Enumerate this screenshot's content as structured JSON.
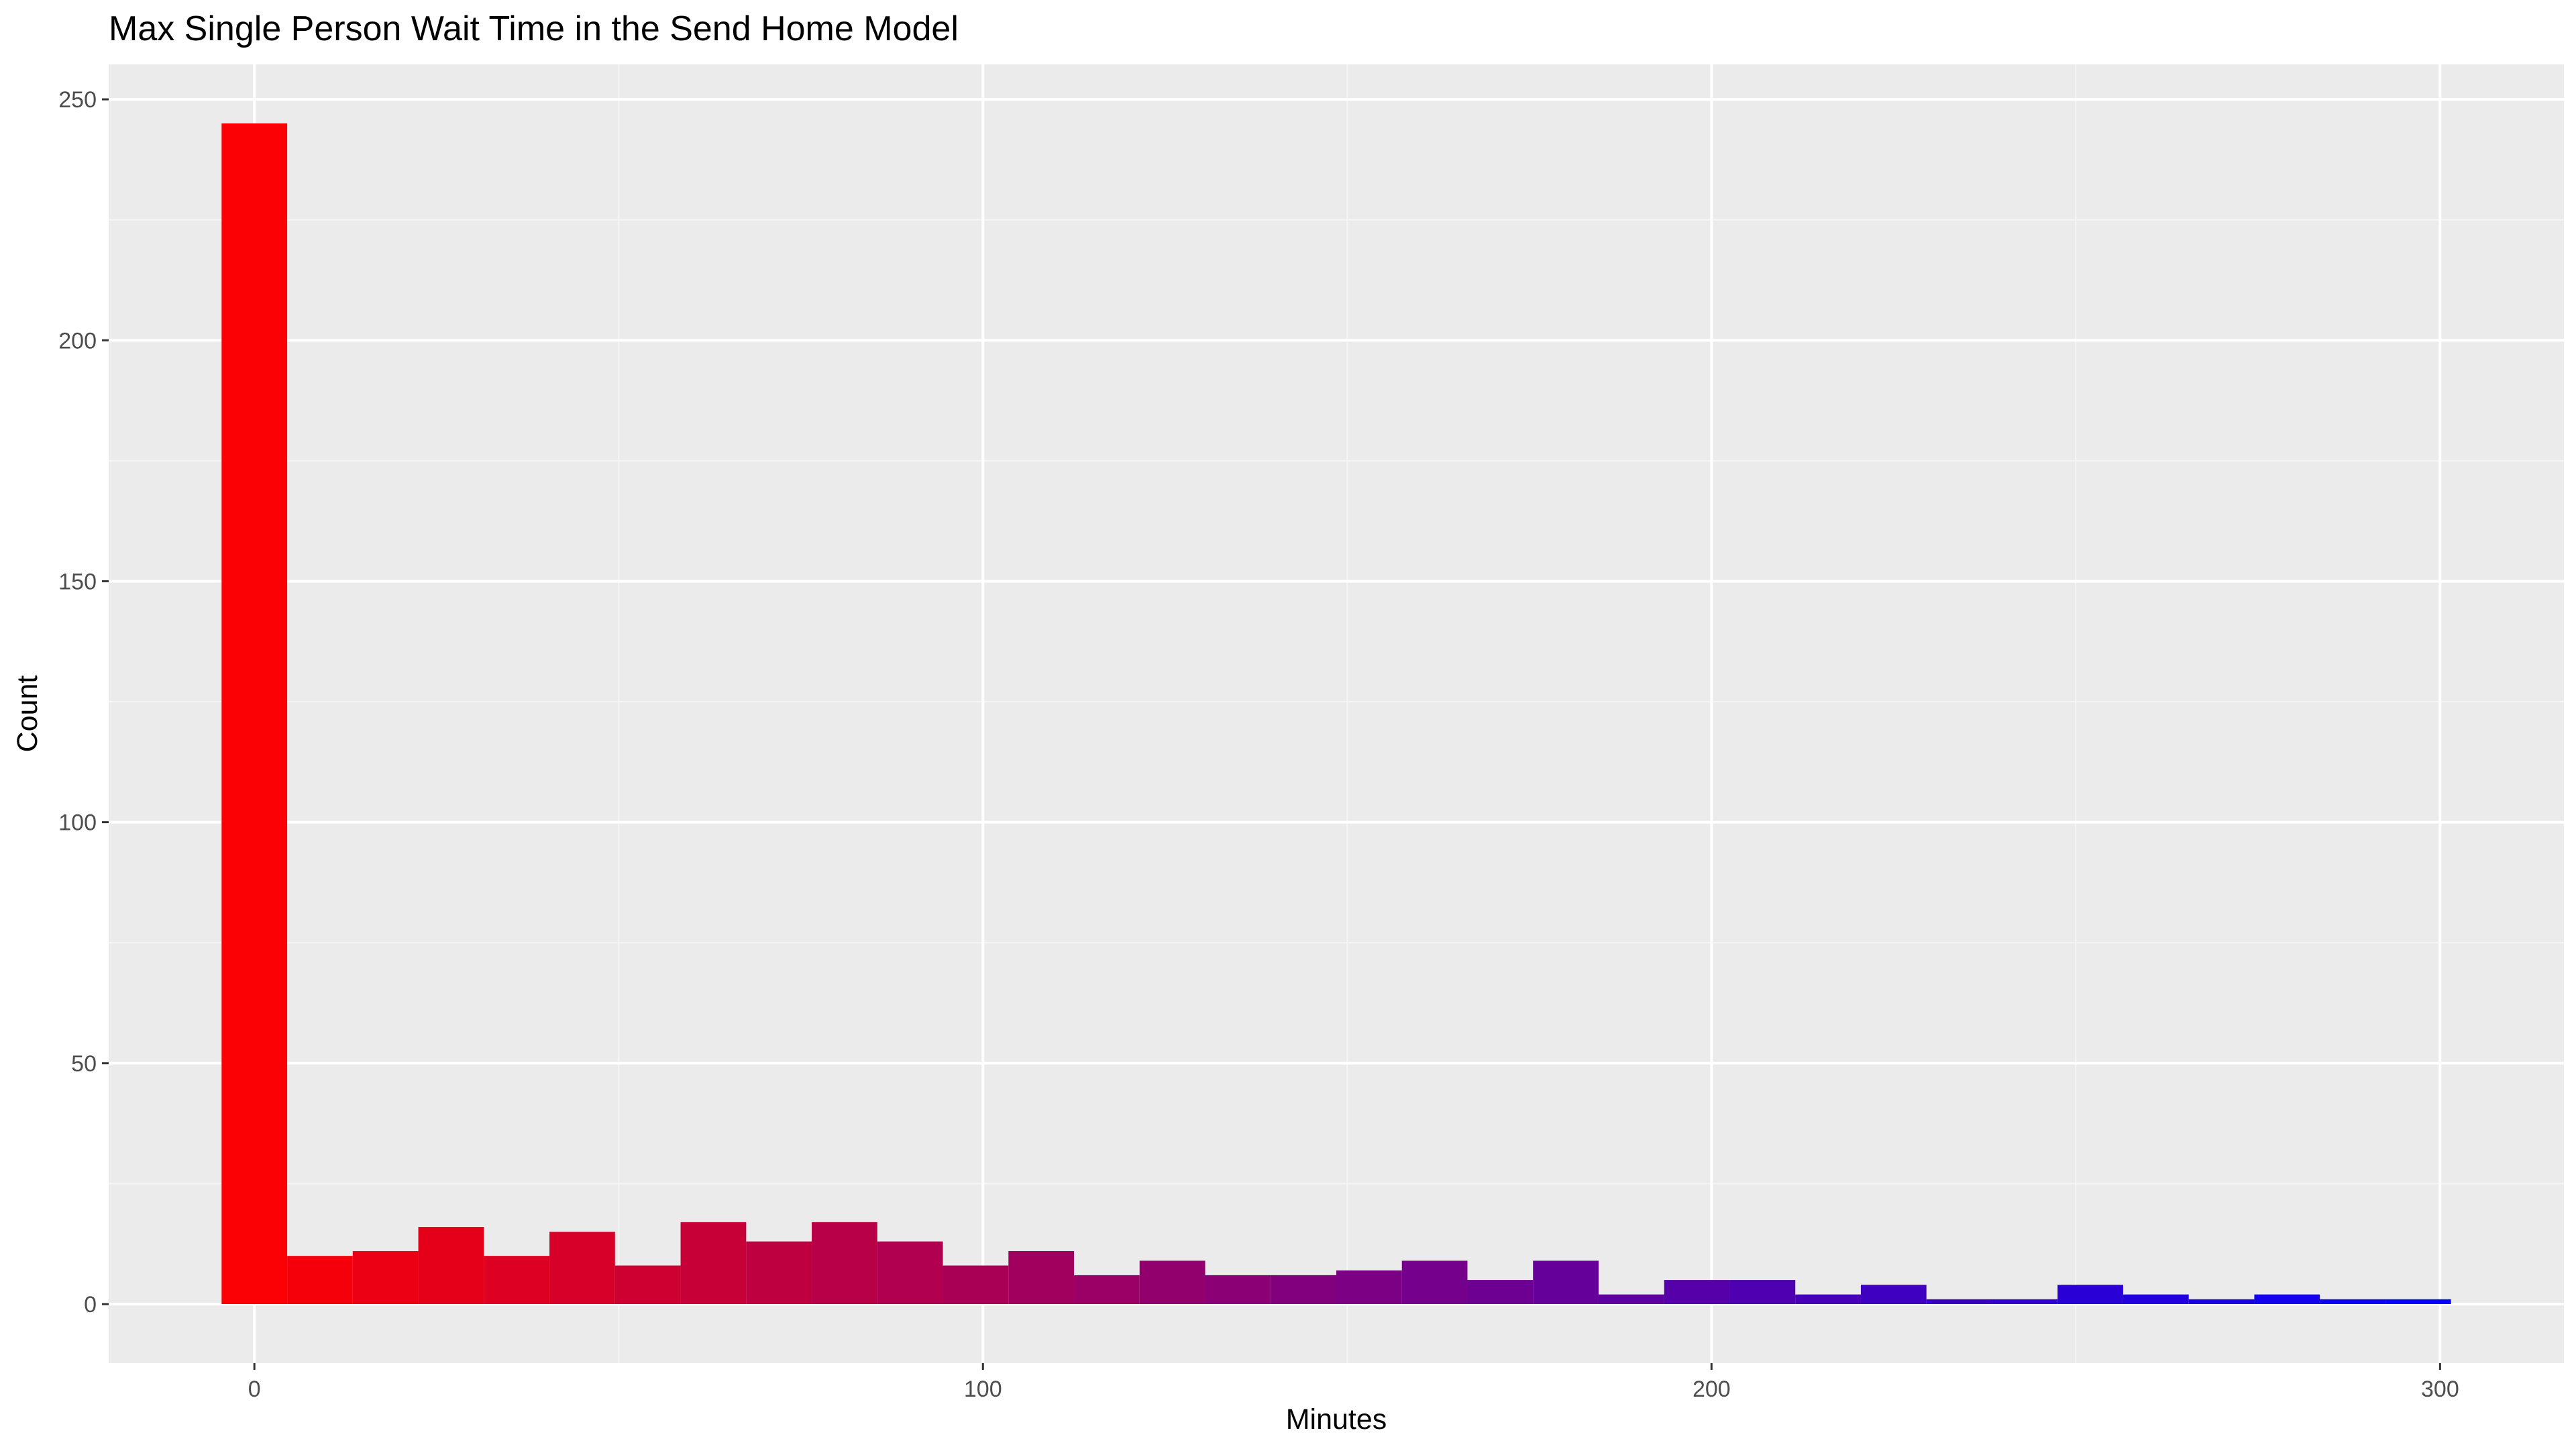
{
  "chart_data": {
    "type": "bar",
    "title": "Max Single Person Wait Time in the Send Home Model",
    "xlabel": "Minutes",
    "ylabel": "Count",
    "xlim": [
      -20,
      317
    ],
    "ylim": [
      -12.25,
      257.25
    ],
    "x_ticks": [
      0,
      100,
      200,
      300
    ],
    "x_tick_labels": [
      "0",
      "100",
      "200",
      "300"
    ],
    "y_ticks": [
      0,
      50,
      100,
      150,
      200,
      250
    ],
    "y_tick_labels": [
      "0",
      "50",
      "100",
      "150",
      "200",
      "250"
    ],
    "grid": true,
    "legend": "none",
    "bin_width": 9,
    "bin_starts": [
      -4.5,
      4.5,
      13.5,
      22.5,
      31.5,
      40.5,
      49.5,
      58.5,
      67.5,
      76.5,
      85.5,
      94.5,
      103.5,
      112.5,
      121.5,
      130.5,
      139.5,
      148.5,
      157.5,
      166.5,
      175.5,
      184.5,
      193.5,
      202.5,
      211.5,
      220.5,
      229.5,
      238.5,
      247.5,
      256.5,
      265.5,
      274.5,
      283.5,
      292.5
    ],
    "values": [
      245,
      10,
      11,
      16,
      10,
      15,
      8,
      17,
      13,
      17,
      13,
      8,
      11,
      6,
      9,
      6,
      6,
      7,
      9,
      5,
      9,
      2,
      5,
      5,
      2,
      4,
      1,
      1,
      4,
      2,
      1,
      2,
      1,
      1
    ],
    "fill_gradient": {
      "low": "#ff0000",
      "high": "#0000ff"
    }
  },
  "colors": {
    "panel_background": "#ebebeb",
    "major_grid": "#ffffff",
    "minor_grid": "#f5f5f5",
    "tick_text": "#4d4d4d",
    "title_text": "#000000"
  }
}
